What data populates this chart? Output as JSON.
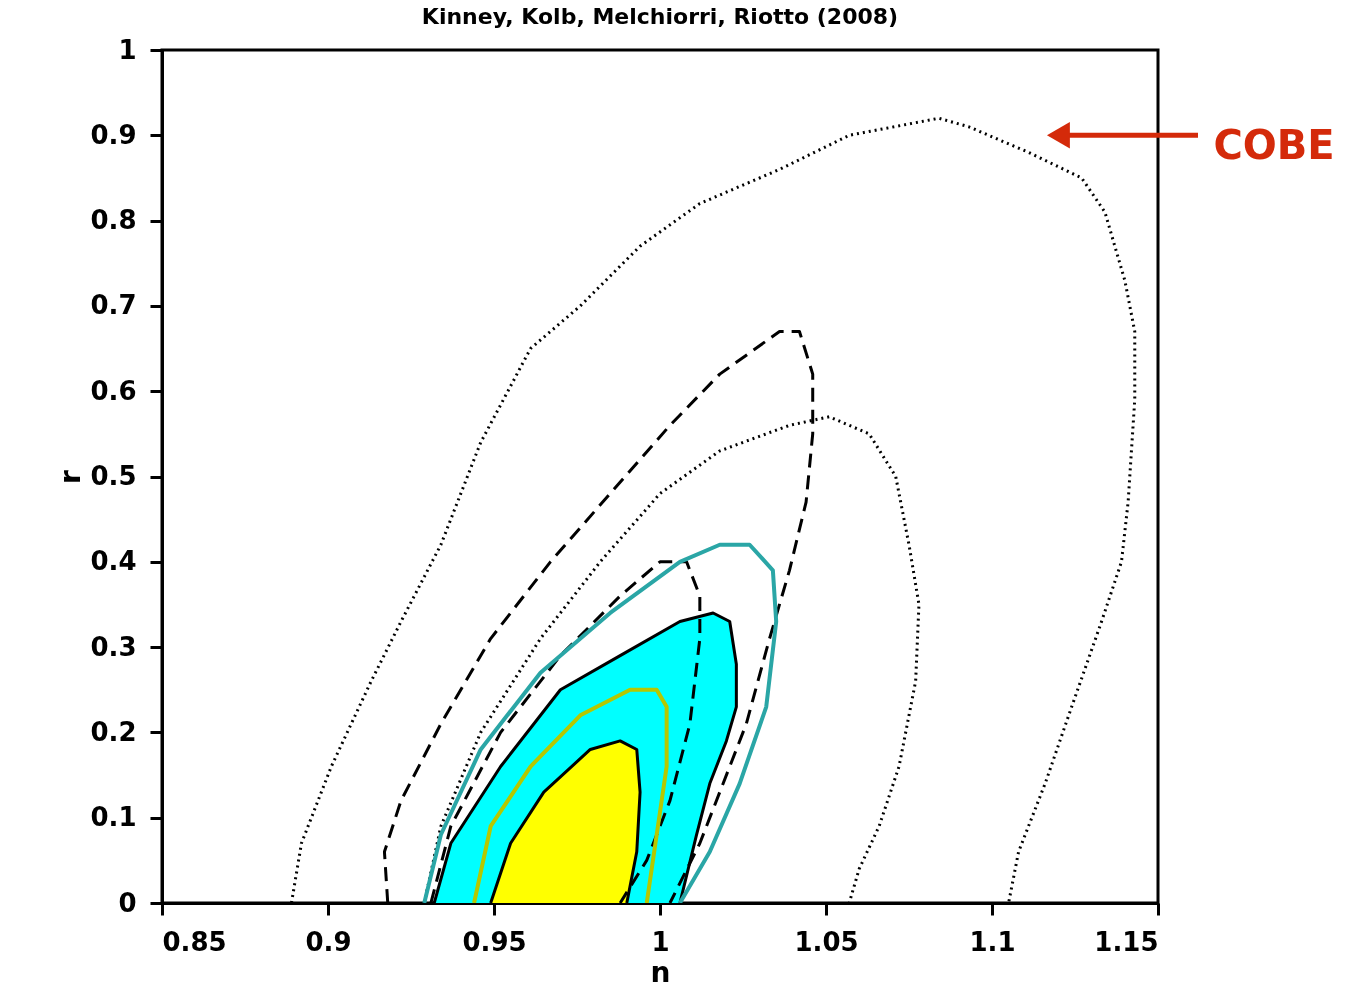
{
  "chart_data": {
    "type": "line",
    "title": "Kinney, Kolb, Melchiorri, Riotto (2008)",
    "xlabel": "n",
    "ylabel": "r",
    "xlim": [
      0.85,
      1.15
    ],
    "xticks": [
      0.85,
      0.9,
      0.95,
      1,
      1.05,
      1.1,
      1.15
    ],
    "ylim": [
      0,
      1
    ],
    "yticks": [
      0,
      0.1,
      0.2,
      0.3,
      0.4,
      0.5,
      0.6,
      0.7,
      0.8,
      0.9,
      1
    ],
    "grid": false,
    "marker": "none",
    "annotations": [
      {
        "text": "COBE",
        "x": 1.12,
        "y": 0.9
      }
    ],
    "series": [
      {
        "line_style": "dotted",
        "color": "#000000",
        "x": [
          0.889,
          0.892,
          0.901,
          0.913,
          0.922,
          0.934,
          0.946,
          0.961,
          0.976,
          0.994,
          1.012,
          1.036,
          1.057,
          1.084,
          1.093,
          1.111,
          1.127,
          1.134,
          1.14,
          1.143,
          1.143,
          1.141,
          1.139,
          1.133,
          1.124,
          1.116,
          1.108,
          1.105
        ],
        "values": [
          0,
          0.07,
          0.16,
          0.26,
          0.33,
          0.42,
          0.54,
          0.65,
          0.7,
          0.77,
          0.82,
          0.86,
          0.9,
          0.92,
          0.91,
          0.88,
          0.85,
          0.81,
          0.73,
          0.67,
          0.59,
          0.47,
          0.4,
          0.33,
          0.23,
          0.14,
          0.06,
          0
        ]
      },
      {
        "line_style": "dotted",
        "color": "#000000",
        "x": [
          0.929,
          0.934,
          0.946,
          0.964,
          0.982,
          1.0,
          1.018,
          1.039,
          1.051,
          1.063,
          1.071,
          1.075,
          1.078,
          1.077,
          1.072,
          1.066,
          1.06,
          1.057
        ],
        "values": [
          0,
          0.09,
          0.2,
          0.31,
          0.4,
          0.48,
          0.53,
          0.56,
          0.57,
          0.55,
          0.5,
          0.42,
          0.35,
          0.26,
          0.16,
          0.09,
          0.04,
          0
        ]
      },
      {
        "line_style": "dashed",
        "color": "#000000",
        "x": [
          0.918,
          0.917,
          0.922,
          0.934,
          0.949,
          0.967,
          0.985,
          1.003,
          1.018,
          1.036,
          1.042,
          1.046,
          1.046,
          1.044,
          1.039,
          1.033,
          1.026,
          1.018,
          1.012,
          1.003
        ],
        "values": [
          0,
          0.06,
          0.12,
          0.21,
          0.31,
          0.4,
          0.48,
          0.56,
          0.62,
          0.67,
          0.67,
          0.62,
          0.55,
          0.47,
          0.39,
          0.31,
          0.21,
          0.13,
          0.07,
          0
        ]
      },
      {
        "line_style": "dashed",
        "color": "#000000",
        "x": [
          0.931,
          0.937,
          0.952,
          0.97,
          0.988,
          1.0,
          1.008,
          1.012,
          1.012,
          1.009,
          1.003,
          0.996,
          0.988
        ],
        "values": [
          0,
          0.09,
          0.2,
          0.29,
          0.36,
          0.4,
          0.4,
          0.36,
          0.31,
          0.21,
          0.12,
          0.05,
          0
        ]
      },
      {
        "type": "area",
        "line_style": "solid",
        "color": "#00ffff",
        "x": [
          0.932,
          0.937,
          0.952,
          0.97,
          0.988,
          1.006,
          1.016,
          1.021,
          1.023,
          1.023,
          1.02,
          1.015,
          1.011,
          1.006
        ],
        "values": [
          0,
          0.07,
          0.16,
          0.25,
          0.29,
          0.33,
          0.34,
          0.33,
          0.28,
          0.23,
          0.19,
          0.14,
          0.08,
          0
        ]
      },
      {
        "line_style": "solid",
        "color": "#2aa6a6",
        "x": [
          0.929,
          0.934,
          0.946,
          0.964,
          0.985,
          1.006,
          1.018,
          1.027,
          1.034,
          1.035,
          1.032,
          1.024,
          1.015,
          1.006
        ],
        "values": [
          0,
          0.08,
          0.18,
          0.27,
          0.34,
          0.4,
          0.42,
          0.42,
          0.39,
          0.33,
          0.23,
          0.14,
          0.06,
          0
        ]
      },
      {
        "line_style": "solid",
        "color": "#b5c800",
        "x": [
          0.944,
          0.949,
          0.961,
          0.976,
          0.991,
          0.999,
          1.002,
          1.002,
          0.999,
          0.996
        ],
        "values": [
          0,
          0.09,
          0.16,
          0.22,
          0.25,
          0.25,
          0.23,
          0.16,
          0.08,
          0
        ]
      },
      {
        "type": "area",
        "line_style": "solid",
        "color": "#ffff00",
        "x": [
          0.949,
          0.955,
          0.965,
          0.979,
          0.988,
          0.993,
          0.994,
          0.993,
          0.99
        ],
        "values": [
          0,
          0.07,
          0.13,
          0.18,
          0.19,
          0.18,
          0.13,
          0.06,
          0
        ]
      }
    ]
  }
}
